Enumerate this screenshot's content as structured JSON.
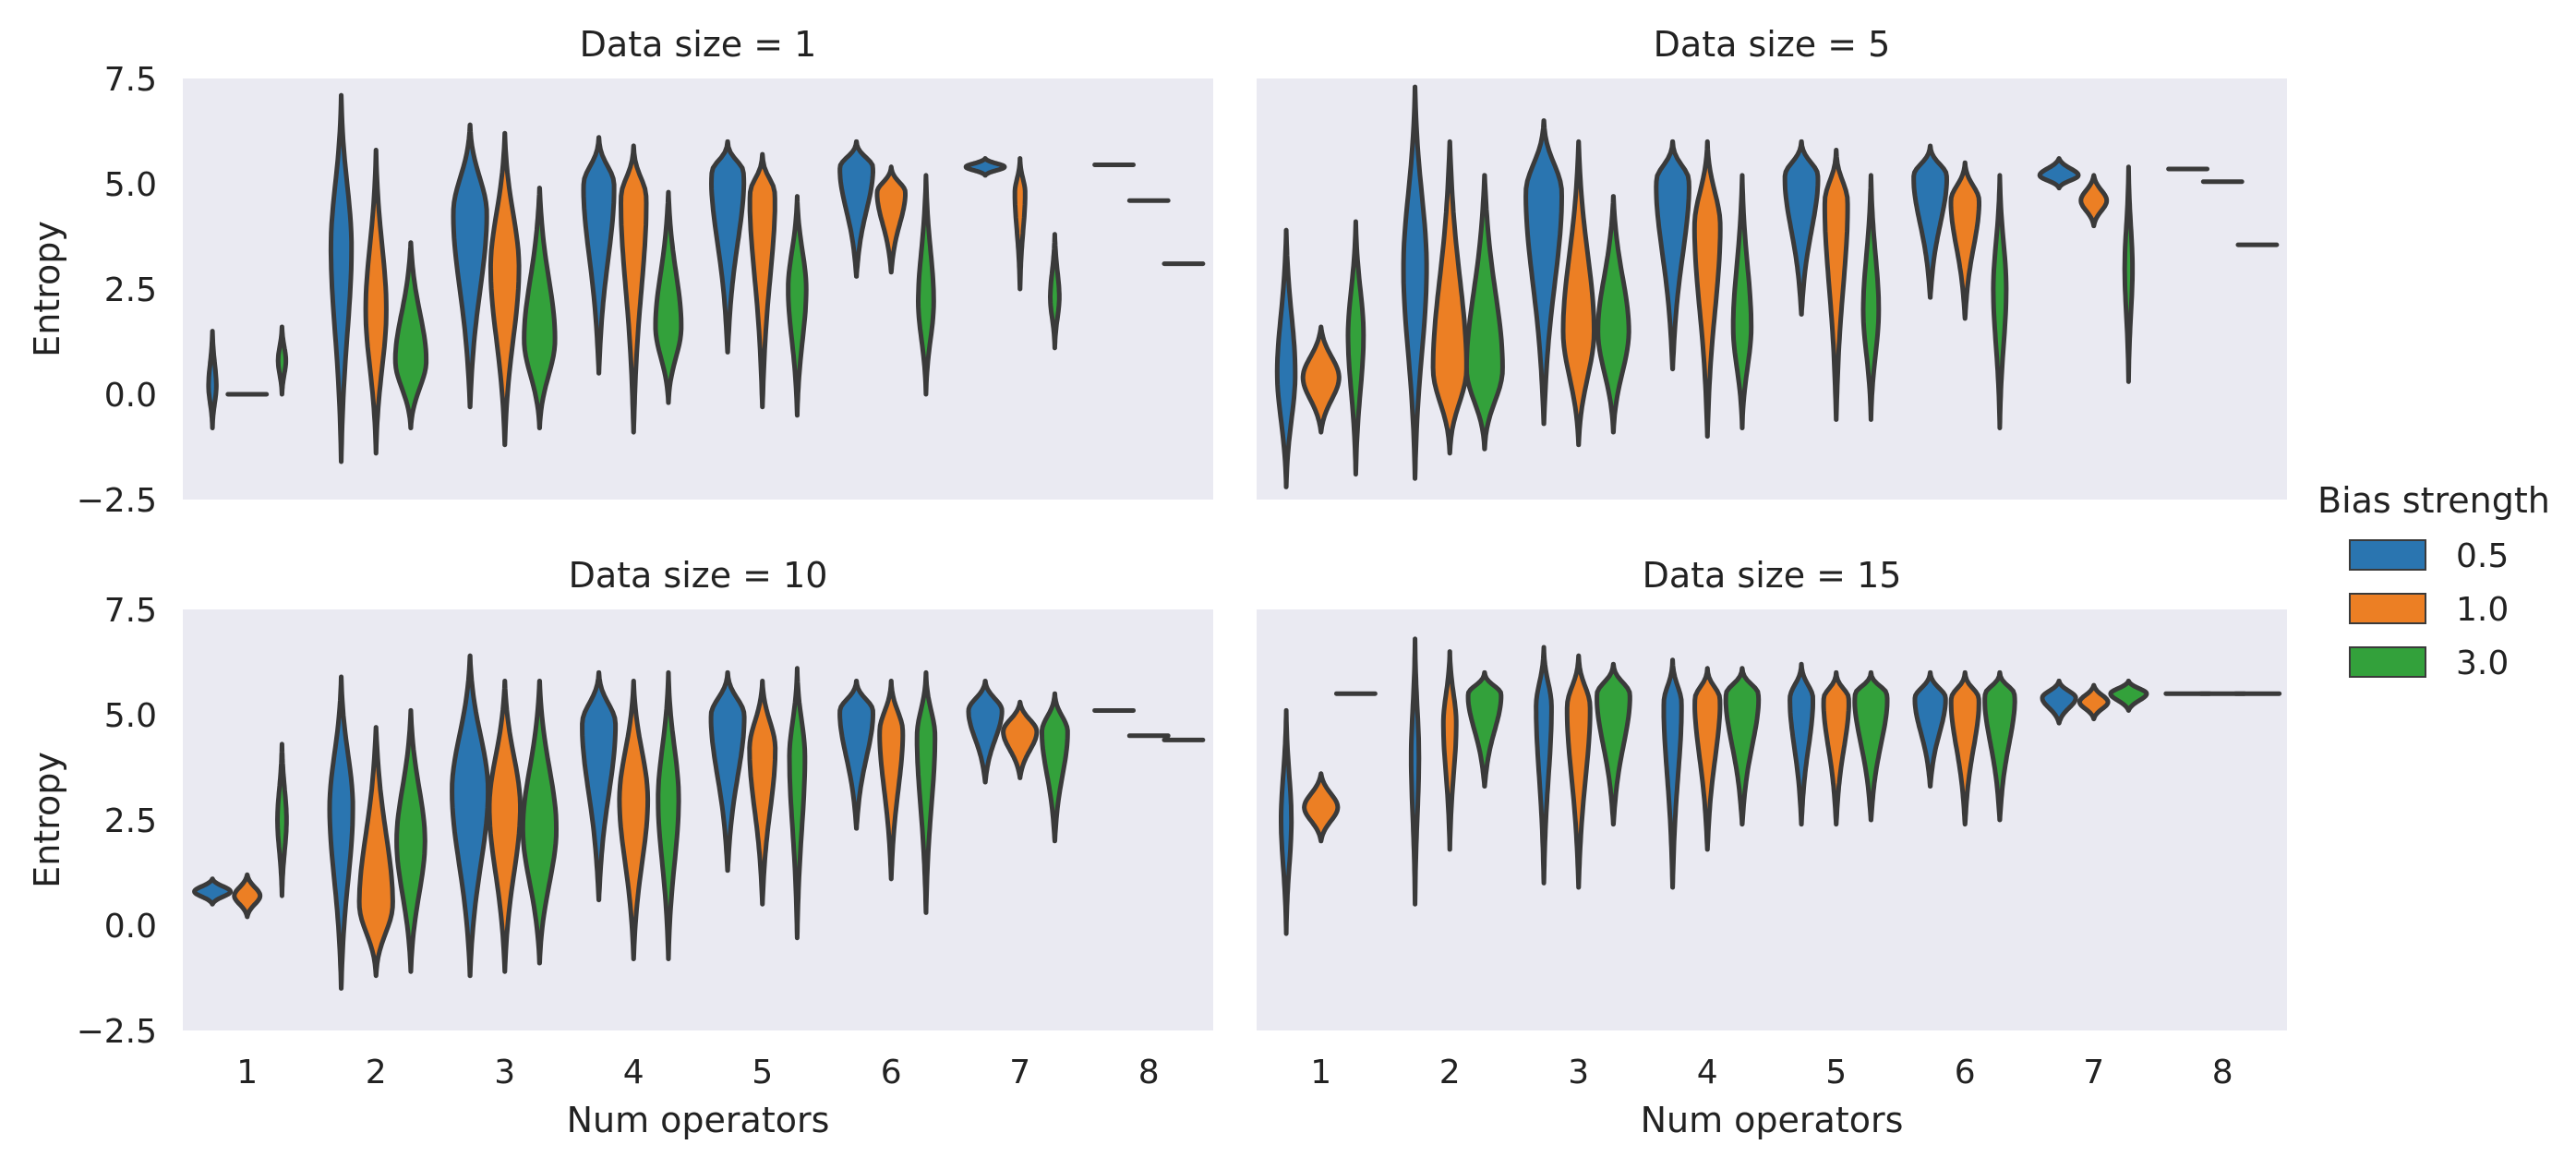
{
  "colors": {
    "0.5": "#2a75b0",
    "1.0": "#ec7f24",
    "3.0": "#33a13b",
    "panel_background": "#eaeaf2",
    "outline": "#3a3a3a"
  },
  "chart_data": {
    "type": "violin",
    "grid": false,
    "ylim": [
      -2.5,
      7.5
    ],
    "y_ticks": [
      "−2.5",
      "0.0",
      "2.5",
      "5.0",
      "7.5"
    ],
    "y_tick_values": [
      -2.5,
      0,
      2.5,
      5,
      7.5
    ],
    "x_categories": [
      "1",
      "2",
      "3",
      "4",
      "5",
      "6",
      "7",
      "8"
    ],
    "xlabel": "Num operators",
    "ylabel": "Entropy",
    "hue_levels": [
      "0.5",
      "1.0",
      "3.0"
    ],
    "legend": {
      "title": "Bias strength",
      "position": "right",
      "entries": [
        "0.5",
        "1.0",
        "3.0"
      ]
    },
    "panels": [
      {
        "title": "Data size = 1",
        "violins": [
          {
            "x": "1",
            "hue": "0.5",
            "min": -0.8,
            "max": 1.5,
            "center": 0.2,
            "width": 0.06
          },
          {
            "x": "1",
            "hue": "1.0",
            "min": 0.0,
            "max": 0.0,
            "flat": true,
            "width": 0.3
          },
          {
            "x": "1",
            "hue": "3.0",
            "min": 0.0,
            "max": 1.6,
            "center": 0.8,
            "width": 0.06
          },
          {
            "x": "2",
            "hue": "0.5",
            "min": -1.6,
            "max": 7.1,
            "center": 3.5,
            "width": 0.16
          },
          {
            "x": "2",
            "hue": "1.0",
            "min": -1.4,
            "max": 5.8,
            "center": 2.0,
            "width": 0.16
          },
          {
            "x": "2",
            "hue": "3.0",
            "min": -0.8,
            "max": 3.6,
            "center": 0.8,
            "width": 0.24
          },
          {
            "x": "3",
            "hue": "0.5",
            "min": -0.3,
            "max": 6.4,
            "center": 4.3,
            "width": 0.26
          },
          {
            "x": "3",
            "hue": "1.0",
            "min": -1.2,
            "max": 6.2,
            "center": 3.0,
            "width": 0.22
          },
          {
            "x": "3",
            "hue": "3.0",
            "min": -0.8,
            "max": 4.9,
            "center": 1.3,
            "width": 0.24
          },
          {
            "x": "4",
            "hue": "0.5",
            "min": 0.5,
            "max": 6.1,
            "center": 5.0,
            "width": 0.24
          },
          {
            "x": "4",
            "hue": "1.0",
            "min": -0.9,
            "max": 5.9,
            "center": 4.7,
            "width": 0.2
          },
          {
            "x": "4",
            "hue": "3.0",
            "min": -0.2,
            "max": 4.8,
            "center": 1.6,
            "width": 0.2
          },
          {
            "x": "5",
            "hue": "0.5",
            "min": 1.0,
            "max": 6.0,
            "center": 5.3,
            "width": 0.26
          },
          {
            "x": "5",
            "hue": "1.0",
            "min": -0.3,
            "max": 5.7,
            "center": 4.8,
            "width": 0.2
          },
          {
            "x": "5",
            "hue": "3.0",
            "min": -0.5,
            "max": 4.7,
            "center": 2.5,
            "width": 0.14
          },
          {
            "x": "6",
            "hue": "0.5",
            "min": 2.8,
            "max": 6.0,
            "center": 5.4,
            "width": 0.26
          },
          {
            "x": "6",
            "hue": "1.0",
            "min": 2.9,
            "max": 5.4,
            "center": 4.8,
            "width": 0.22
          },
          {
            "x": "6",
            "hue": "3.0",
            "min": 0.0,
            "max": 5.2,
            "center": 2.2,
            "width": 0.12
          },
          {
            "x": "7",
            "hue": "0.5",
            "min": 5.2,
            "max": 5.6,
            "center": 5.4,
            "width": 0.3
          },
          {
            "x": "7",
            "hue": "1.0",
            "min": 2.5,
            "max": 5.6,
            "center": 4.8,
            "width": 0.08
          },
          {
            "x": "7",
            "hue": "3.0",
            "min": 1.1,
            "max": 3.8,
            "center": 2.3,
            "width": 0.07
          },
          {
            "x": "8",
            "hue": "0.5",
            "min": 5.45,
            "max": 5.45,
            "flat": true,
            "width": 0.3
          },
          {
            "x": "8",
            "hue": "1.0",
            "min": 4.6,
            "max": 4.6,
            "flat": true,
            "width": 0.3
          },
          {
            "x": "8",
            "hue": "3.0",
            "min": 3.1,
            "max": 3.1,
            "flat": true,
            "width": 0.3
          }
        ]
      },
      {
        "title": "Data size = 5",
        "violins": [
          {
            "x": "1",
            "hue": "0.5",
            "min": -2.2,
            "max": 3.9,
            "center": 0.5,
            "width": 0.14
          },
          {
            "x": "1",
            "hue": "1.0",
            "min": -0.9,
            "max": 1.6,
            "center": 0.4,
            "width": 0.28
          },
          {
            "x": "1",
            "hue": "3.0",
            "min": -1.9,
            "max": 4.1,
            "center": 1.4,
            "width": 0.12
          },
          {
            "x": "2",
            "hue": "0.5",
            "min": -2.0,
            "max": 7.3,
            "center": 3.0,
            "width": 0.18
          },
          {
            "x": "2",
            "hue": "1.0",
            "min": -1.4,
            "max": 6.0,
            "center": 0.6,
            "width": 0.26
          },
          {
            "x": "2",
            "hue": "3.0",
            "min": -1.3,
            "max": 5.2,
            "center": 0.6,
            "width": 0.28
          },
          {
            "x": "3",
            "hue": "0.5",
            "min": -0.7,
            "max": 6.5,
            "center": 4.8,
            "width": 0.28
          },
          {
            "x": "3",
            "hue": "1.0",
            "min": -1.2,
            "max": 6.0,
            "center": 1.5,
            "width": 0.24
          },
          {
            "x": "3",
            "hue": "3.0",
            "min": -0.9,
            "max": 4.7,
            "center": 1.5,
            "width": 0.24
          },
          {
            "x": "4",
            "hue": "0.5",
            "min": 0.6,
            "max": 6.0,
            "center": 5.1,
            "width": 0.26
          },
          {
            "x": "4",
            "hue": "1.0",
            "min": -1.0,
            "max": 6.0,
            "center": 4.0,
            "width": 0.2
          },
          {
            "x": "4",
            "hue": "3.0",
            "min": -0.8,
            "max": 5.2,
            "center": 1.6,
            "width": 0.14
          },
          {
            "x": "5",
            "hue": "0.5",
            "min": 1.9,
            "max": 6.0,
            "center": 5.2,
            "width": 0.26
          },
          {
            "x": "5",
            "hue": "1.0",
            "min": -0.6,
            "max": 5.8,
            "center": 4.6,
            "width": 0.18
          },
          {
            "x": "5",
            "hue": "3.0",
            "min": -0.6,
            "max": 5.2,
            "center": 2.0,
            "width": 0.12
          },
          {
            "x": "6",
            "hue": "0.5",
            "min": 2.3,
            "max": 5.9,
            "center": 5.2,
            "width": 0.26
          },
          {
            "x": "6",
            "hue": "1.0",
            "min": 1.8,
            "max": 5.5,
            "center": 4.6,
            "width": 0.22
          },
          {
            "x": "6",
            "hue": "3.0",
            "min": -0.8,
            "max": 5.2,
            "center": 2.5,
            "width": 0.1
          },
          {
            "x": "7",
            "hue": "0.5",
            "min": 4.9,
            "max": 5.6,
            "center": 5.2,
            "width": 0.3
          },
          {
            "x": "7",
            "hue": "1.0",
            "min": 4.0,
            "max": 5.2,
            "center": 4.6,
            "width": 0.2
          },
          {
            "x": "7",
            "hue": "3.0",
            "min": 0.3,
            "max": 5.4,
            "center": 3.0,
            "width": 0.06
          },
          {
            "x": "8",
            "hue": "0.5",
            "min": 5.35,
            "max": 5.35,
            "flat": true,
            "width": 0.3
          },
          {
            "x": "8",
            "hue": "1.0",
            "min": 5.05,
            "max": 5.05,
            "flat": true,
            "width": 0.3
          },
          {
            "x": "8",
            "hue": "3.0",
            "min": 3.55,
            "max": 3.55,
            "flat": true,
            "width": 0.3
          }
        ]
      },
      {
        "title": "Data size = 10",
        "violins": [
          {
            "x": "1",
            "hue": "0.5",
            "min": 0.5,
            "max": 1.1,
            "center": 0.8,
            "width": 0.28
          },
          {
            "x": "1",
            "hue": "1.0",
            "min": 0.2,
            "max": 1.2,
            "center": 0.7,
            "width": 0.2
          },
          {
            "x": "1",
            "hue": "3.0",
            "min": 0.7,
            "max": 4.3,
            "center": 2.5,
            "width": 0.07
          },
          {
            "x": "2",
            "hue": "0.5",
            "min": -1.5,
            "max": 5.9,
            "center": 2.8,
            "width": 0.18
          },
          {
            "x": "2",
            "hue": "1.0",
            "min": -1.2,
            "max": 4.7,
            "center": 0.5,
            "width": 0.26
          },
          {
            "x": "2",
            "hue": "3.0",
            "min": -1.1,
            "max": 5.1,
            "center": 2.0,
            "width": 0.22
          },
          {
            "x": "3",
            "hue": "0.5",
            "min": -1.2,
            "max": 6.4,
            "center": 3.2,
            "width": 0.28
          },
          {
            "x": "3",
            "hue": "1.0",
            "min": -1.1,
            "max": 5.8,
            "center": 2.8,
            "width": 0.24
          },
          {
            "x": "3",
            "hue": "3.0",
            "min": -0.9,
            "max": 5.8,
            "center": 2.3,
            "width": 0.26
          },
          {
            "x": "4",
            "hue": "0.5",
            "min": 0.6,
            "max": 6.0,
            "center": 4.8,
            "width": 0.26
          },
          {
            "x": "4",
            "hue": "1.0",
            "min": -0.8,
            "max": 5.8,
            "center": 3.0,
            "width": 0.22
          },
          {
            "x": "4",
            "hue": "3.0",
            "min": -0.8,
            "max": 6.0,
            "center": 3.0,
            "width": 0.16
          },
          {
            "x": "5",
            "hue": "0.5",
            "min": 1.3,
            "max": 6.0,
            "center": 5.0,
            "width": 0.26
          },
          {
            "x": "5",
            "hue": "1.0",
            "min": 0.5,
            "max": 5.8,
            "center": 4.2,
            "width": 0.2
          },
          {
            "x": "5",
            "hue": "3.0",
            "min": -0.3,
            "max": 6.1,
            "center": 4.0,
            "width": 0.12
          },
          {
            "x": "6",
            "hue": "0.5",
            "min": 2.3,
            "max": 5.8,
            "center": 5.1,
            "width": 0.26
          },
          {
            "x": "6",
            "hue": "1.0",
            "min": 1.1,
            "max": 5.8,
            "center": 4.6,
            "width": 0.18
          },
          {
            "x": "6",
            "hue": "3.0",
            "min": 0.3,
            "max": 6.0,
            "center": 4.5,
            "width": 0.14
          },
          {
            "x": "7",
            "hue": "0.5",
            "min": 3.4,
            "max": 5.8,
            "center": 5.1,
            "width": 0.26
          },
          {
            "x": "7",
            "hue": "1.0",
            "min": 3.5,
            "max": 5.3,
            "center": 4.6,
            "width": 0.26
          },
          {
            "x": "7",
            "hue": "3.0",
            "min": 2.0,
            "max": 5.5,
            "center": 4.6,
            "width": 0.2
          },
          {
            "x": "8",
            "hue": "0.5",
            "min": 5.1,
            "max": 5.1,
            "flat": true,
            "width": 0.3
          },
          {
            "x": "8",
            "hue": "1.0",
            "min": 4.5,
            "max": 4.5,
            "flat": true,
            "width": 0.3
          },
          {
            "x": "8",
            "hue": "3.0",
            "min": 4.4,
            "max": 4.4,
            "flat": true,
            "width": 0.3
          }
        ]
      },
      {
        "title": "Data size = 15",
        "violins": [
          {
            "x": "1",
            "hue": "0.5",
            "min": -0.2,
            "max": 5.1,
            "center": 2.5,
            "width": 0.08
          },
          {
            "x": "1",
            "hue": "1.0",
            "min": 2.0,
            "max": 3.6,
            "center": 2.8,
            "width": 0.26
          },
          {
            "x": "1",
            "hue": "3.0",
            "min": 5.5,
            "max": 5.5,
            "flat": true,
            "width": 0.3
          },
          {
            "x": "2",
            "hue": "0.5",
            "min": 0.5,
            "max": 6.8,
            "center": 4.0,
            "width": 0.06
          },
          {
            "x": "2",
            "hue": "1.0",
            "min": 1.8,
            "max": 6.5,
            "center": 4.8,
            "width": 0.1
          },
          {
            "x": "2",
            "hue": "3.0",
            "min": 3.3,
            "max": 6.0,
            "center": 5.5,
            "width": 0.26
          },
          {
            "x": "3",
            "hue": "0.5",
            "min": 1.0,
            "max": 6.6,
            "center": 5.2,
            "width": 0.12
          },
          {
            "x": "3",
            "hue": "1.0",
            "min": 0.9,
            "max": 6.4,
            "center": 5.2,
            "width": 0.18
          },
          {
            "x": "3",
            "hue": "3.0",
            "min": 2.4,
            "max": 6.2,
            "center": 5.5,
            "width": 0.26
          },
          {
            "x": "4",
            "hue": "0.5",
            "min": 0.9,
            "max": 6.3,
            "center": 5.3,
            "width": 0.14
          },
          {
            "x": "4",
            "hue": "1.0",
            "min": 1.8,
            "max": 6.1,
            "center": 5.4,
            "width": 0.2
          },
          {
            "x": "4",
            "hue": "3.0",
            "min": 2.4,
            "max": 6.1,
            "center": 5.5,
            "width": 0.26
          },
          {
            "x": "5",
            "hue": "0.5",
            "min": 2.4,
            "max": 6.2,
            "center": 5.4,
            "width": 0.18
          },
          {
            "x": "5",
            "hue": "1.0",
            "min": 2.4,
            "max": 6.0,
            "center": 5.4,
            "width": 0.2
          },
          {
            "x": "5",
            "hue": "3.0",
            "min": 2.5,
            "max": 6.0,
            "center": 5.5,
            "width": 0.26
          },
          {
            "x": "6",
            "hue": "0.5",
            "min": 3.3,
            "max": 6.0,
            "center": 5.4,
            "width": 0.24
          },
          {
            "x": "6",
            "hue": "1.0",
            "min": 2.4,
            "max": 6.0,
            "center": 5.4,
            "width": 0.22
          },
          {
            "x": "6",
            "hue": "3.0",
            "min": 2.5,
            "max": 6.0,
            "center": 5.5,
            "width": 0.24
          },
          {
            "x": "7",
            "hue": "0.5",
            "min": 4.8,
            "max": 5.8,
            "center": 5.4,
            "width": 0.26
          },
          {
            "x": "7",
            "hue": "1.0",
            "min": 4.9,
            "max": 5.7,
            "center": 5.3,
            "width": 0.22
          },
          {
            "x": "7",
            "hue": "3.0",
            "min": 5.1,
            "max": 5.8,
            "center": 5.5,
            "width": 0.28
          },
          {
            "x": "8",
            "hue": "0.5",
            "min": 5.5,
            "max": 5.5,
            "flat": true,
            "width": 0.34
          },
          {
            "x": "8",
            "hue": "1.0",
            "min": 5.5,
            "max": 5.5,
            "flat": true,
            "width": 0.34
          },
          {
            "x": "8",
            "hue": "3.0",
            "min": 5.5,
            "max": 5.5,
            "flat": true,
            "width": 0.34
          }
        ]
      }
    ]
  }
}
